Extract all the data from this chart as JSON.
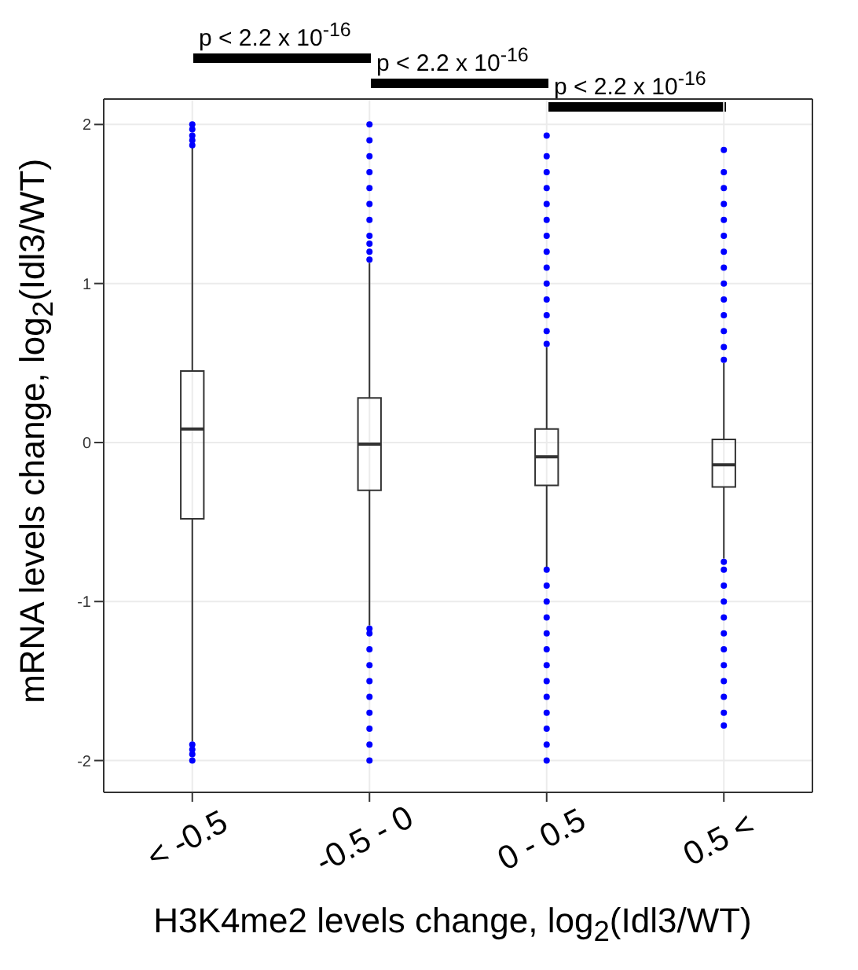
{
  "chart_data": {
    "type": "box",
    "categories": [
      "< -0.5",
      "-0.5 - 0",
      "0 - 0.5",
      "0.5 <"
    ],
    "xlabel": "H3K4me2 levels change, log$_{2}$(Idl3/WT)",
    "ylabel": "mRNA levels change, log$_{2}$(Idl3/WT)",
    "ylim": [
      -2.2,
      2.16
    ],
    "yticks": [
      -2,
      -1,
      0,
      1,
      2
    ],
    "grid": true,
    "annotations": [
      "p < 2.2 x 10$^{-16}$",
      "p < 2.2 x 10$^{-16}$",
      "p < 2.2 x 10$^{-16}$"
    ],
    "series": [
      {
        "color": "#333333",
        "boxes": [
          {
            "low": -1.88,
            "q1": -0.48,
            "median": 0.085,
            "q3": 0.45,
            "high": 1.86
          },
          {
            "low": -1.15,
            "q1": -0.3,
            "median": -0.01,
            "q3": 0.28,
            "high": 1.13
          },
          {
            "low": -0.79,
            "q1": -0.27,
            "median": -0.09,
            "q3": 0.085,
            "high": 0.6
          },
          {
            "low": -0.73,
            "q1": -0.28,
            "median": -0.14,
            "q3": 0.02,
            "high": 0.5
          }
        ]
      },
      {
        "type": "scatter",
        "color": "#0000ff",
        "x": [
          "< -0.5",
          "< -0.5",
          "< -0.5",
          "< -0.5",
          "< -0.5",
          "< -0.5",
          "< -0.5",
          "< -0.5",
          "< -0.5",
          "-0.5 - 0",
          "-0.5 - 0",
          "-0.5 - 0",
          "-0.5 - 0",
          "-0.5 - 0",
          "-0.5 - 0",
          "-0.5 - 0",
          "-0.5 - 0",
          "-0.5 - 0",
          "-0.5 - 0",
          "-0.5 - 0",
          "-0.5 - 0",
          "-0.5 - 0",
          "-0.5 - 0",
          "-0.5 - 0",
          "-0.5 - 0",
          "-0.5 - 0",
          "-0.5 - 0",
          "-0.5 - 0",
          "-0.5 - 0",
          "-0.5 - 0",
          "0 - 0.5",
          "0 - 0.5",
          "0 - 0.5",
          "0 - 0.5",
          "0 - 0.5",
          "0 - 0.5",
          "0 - 0.5",
          "0 - 0.5",
          "0 - 0.5",
          "0 - 0.5",
          "0 - 0.5",
          "0 - 0.5",
          "0 - 0.5",
          "0 - 0.5",
          "0 - 0.5",
          "0 - 0.5",
          "0 - 0.5",
          "0 - 0.5",
          "0 - 0.5",
          "0 - 0.5",
          "0 - 0.5",
          "0 - 0.5",
          "0 - 0.5",
          "0 - 0.5",
          "0 - 0.5",
          "0 - 0.5",
          "0 - 0.5",
          "0.5 <",
          "0.5 <",
          "0.5 <",
          "0.5 <",
          "0.5 <",
          "0.5 <",
          "0.5 <",
          "0.5 <",
          "0.5 <",
          "0.5 <",
          "0.5 <",
          "0.5 <",
          "0.5 <",
          "0.5 <",
          "0.5 <",
          "0.5 <",
          "0.5 <",
          "0.5 <",
          "0.5 <",
          "0.5 <",
          "0.5 <",
          "0.5 <",
          "0.5 <",
          "0.5 <",
          "0.5 <",
          "0.5 <"
        ],
        "values": [
          1.87,
          1.9,
          1.93,
          1.97,
          2.0,
          -1.9,
          -1.93,
          -1.96,
          -2.0,
          1.15,
          1.2,
          1.25,
          1.3,
          1.4,
          1.5,
          1.6,
          1.7,
          1.8,
          1.9,
          2.0,
          -1.17,
          -1.2,
          -1.3,
          -1.4,
          -1.5,
          -1.6,
          -1.7,
          -1.8,
          -1.9,
          -2.0,
          0.62,
          0.7,
          0.8,
          0.9,
          1.0,
          1.1,
          1.2,
          1.3,
          1.4,
          1.5,
          1.6,
          1.7,
          1.8,
          1.93,
          -0.8,
          -0.9,
          -1.0,
          -1.1,
          -1.2,
          -1.3,
          -1.4,
          -1.5,
          -1.6,
          -1.7,
          -1.8,
          -1.9,
          -2.0,
          0.52,
          0.6,
          0.7,
          0.8,
          0.9,
          1.0,
          1.1,
          1.2,
          1.3,
          1.4,
          1.5,
          1.6,
          1.7,
          1.84,
          -0.75,
          -0.8,
          -0.9,
          -1.0,
          -1.1,
          -1.2,
          -1.3,
          -1.4,
          -1.5,
          -1.6,
          -1.7,
          -1.78
        ]
      }
    ]
  }
}
